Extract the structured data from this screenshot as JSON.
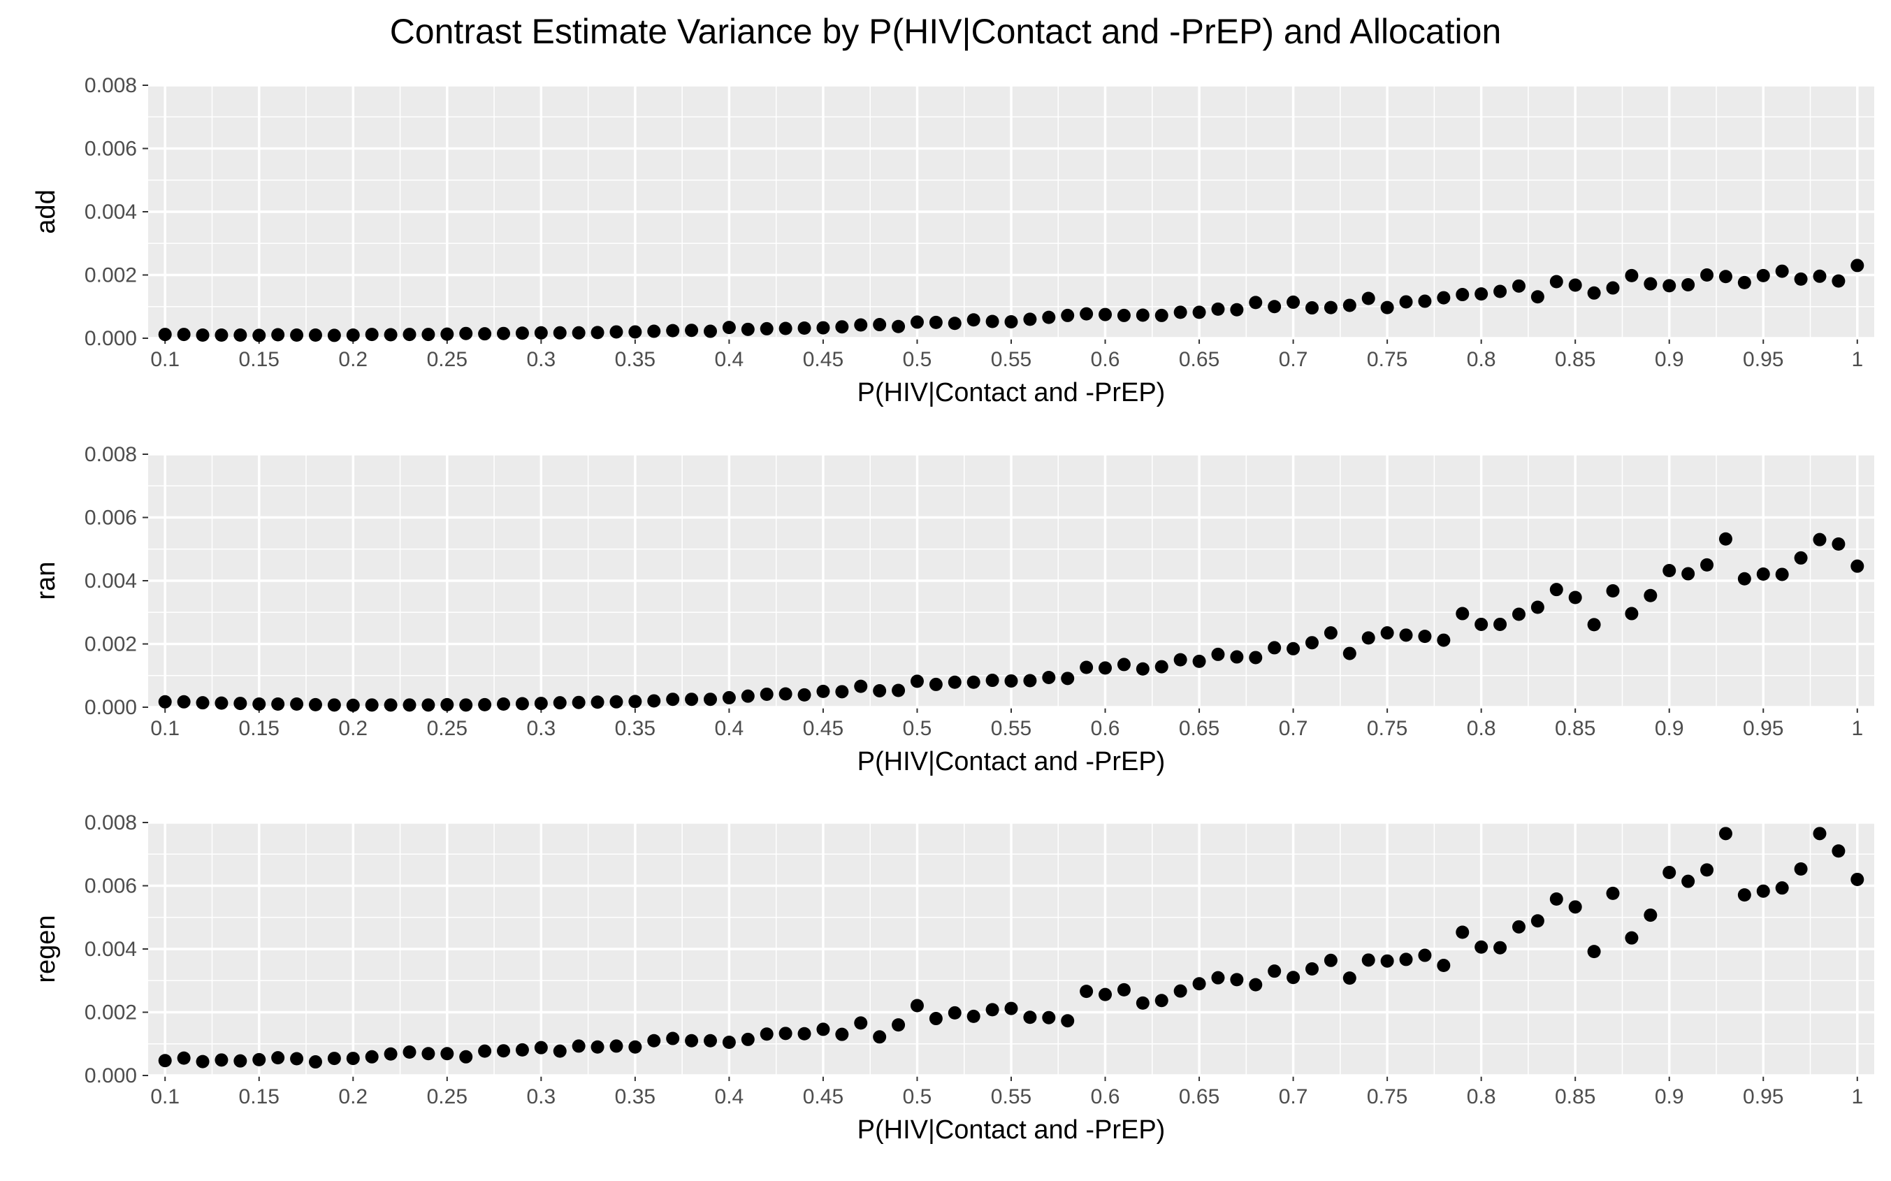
{
  "title": "Contrast Estimate Variance by P(HIV|Contact and -PrEP) and Allocation",
  "colors": {
    "panel_bg": "#ebebeb",
    "grid": "#ffffff",
    "point": "#000000",
    "tick_text": "#4d4d4d",
    "tick_mark": "#333333"
  },
  "chart_data": [
    {
      "type": "scatter",
      "xlabel": "P(HIV|Contact and -PrEP)",
      "ylabel": "add",
      "xlim": [
        0.1,
        1
      ],
      "ylim": [
        0,
        0.008
      ],
      "x_ticks": [
        "0.1",
        "0.15",
        "0.2",
        "0.25",
        "0.3",
        "0.35",
        "0.4",
        "0.45",
        "0.5",
        "0.55",
        "0.6",
        "0.65",
        "0.7",
        "0.75",
        "0.8",
        "0.85",
        "0.9",
        "0.95",
        "1"
      ],
      "y_ticks": [
        "0.000",
        "0.002",
        "0.004",
        "0.006",
        "0.008"
      ],
      "grid": true,
      "x": [
        0.1,
        0.11,
        0.12,
        0.13,
        0.14,
        0.15,
        0.16,
        0.17,
        0.18,
        0.19,
        0.2,
        0.21,
        0.22,
        0.23,
        0.24,
        0.25,
        0.26,
        0.27,
        0.28,
        0.29,
        0.3,
        0.31,
        0.32,
        0.33,
        0.34,
        0.35,
        0.36,
        0.37,
        0.38,
        0.39,
        0.4,
        0.41,
        0.42,
        0.43,
        0.44,
        0.45,
        0.46,
        0.47,
        0.48,
        0.49,
        0.5,
        0.51,
        0.52,
        0.53,
        0.54,
        0.55,
        0.56,
        0.57,
        0.58,
        0.59,
        0.6,
        0.61,
        0.62,
        0.63,
        0.64,
        0.65,
        0.66,
        0.67,
        0.68,
        0.69,
        0.7,
        0.71,
        0.72,
        0.73,
        0.74,
        0.75,
        0.76,
        0.77,
        0.78,
        0.79,
        0.8,
        0.81,
        0.82,
        0.83,
        0.84,
        0.85,
        0.86,
        0.87,
        0.88,
        0.89,
        0.9,
        0.91,
        0.92,
        0.93,
        0.94,
        0.95,
        0.96,
        0.97,
        0.98,
        0.99,
        1.0
      ],
      "y": [
        0.00012,
        0.00012,
        0.0001,
        0.0001,
        0.0001,
        9e-05,
        0.00011,
        0.0001,
        0.0001,
        9e-05,
        0.0001,
        0.00012,
        0.00011,
        0.00012,
        0.00012,
        0.00013,
        0.00015,
        0.00014,
        0.00015,
        0.00016,
        0.00017,
        0.00017,
        0.00017,
        0.00018,
        0.0002,
        0.0002,
        0.00022,
        0.00024,
        0.00025,
        0.00022,
        0.00034,
        0.00028,
        0.0003,
        0.00031,
        0.00032,
        0.00033,
        0.00036,
        0.00042,
        0.00043,
        0.00037,
        0.00051,
        0.0005,
        0.00047,
        0.00058,
        0.00053,
        0.00052,
        0.0006,
        0.00066,
        0.00072,
        0.00077,
        0.00075,
        0.00072,
        0.00073,
        0.00072,
        0.00082,
        0.00082,
        0.00092,
        0.0009,
        0.00113,
        0.001,
        0.00114,
        0.00096,
        0.00097,
        0.00104,
        0.00126,
        0.00097,
        0.00115,
        0.00117,
        0.00128,
        0.00138,
        0.0014,
        0.00148,
        0.00165,
        0.00131,
        0.00179,
        0.00168,
        0.00143,
        0.00159,
        0.00198,
        0.00172,
        0.00166,
        0.00169,
        0.002,
        0.00195,
        0.00176,
        0.00198,
        0.00212,
        0.00187,
        0.00196,
        0.00181,
        0.0023
      ]
    },
    {
      "type": "scatter",
      "xlabel": "P(HIV|Contact and -PrEP)",
      "ylabel": "ran",
      "xlim": [
        0.1,
        1
      ],
      "ylim": [
        0,
        0.008
      ],
      "x_ticks": [
        "0.1",
        "0.15",
        "0.2",
        "0.25",
        "0.3",
        "0.35",
        "0.4",
        "0.45",
        "0.5",
        "0.55",
        "0.6",
        "0.65",
        "0.7",
        "0.75",
        "0.8",
        "0.85",
        "0.9",
        "0.95",
        "1"
      ],
      "y_ticks": [
        "0.000",
        "0.002",
        "0.004",
        "0.006",
        "0.008"
      ],
      "grid": true,
      "x": [
        0.1,
        0.11,
        0.12,
        0.13,
        0.14,
        0.15,
        0.16,
        0.17,
        0.18,
        0.19,
        0.2,
        0.21,
        0.22,
        0.23,
        0.24,
        0.25,
        0.26,
        0.27,
        0.28,
        0.29,
        0.3,
        0.31,
        0.32,
        0.33,
        0.34,
        0.35,
        0.36,
        0.37,
        0.38,
        0.39,
        0.4,
        0.41,
        0.42,
        0.43,
        0.44,
        0.45,
        0.46,
        0.47,
        0.48,
        0.49,
        0.5,
        0.51,
        0.52,
        0.53,
        0.54,
        0.55,
        0.56,
        0.57,
        0.58,
        0.59,
        0.6,
        0.61,
        0.62,
        0.63,
        0.64,
        0.65,
        0.66,
        0.67,
        0.68,
        0.69,
        0.7,
        0.71,
        0.72,
        0.73,
        0.74,
        0.75,
        0.76,
        0.77,
        0.78,
        0.79,
        0.8,
        0.81,
        0.82,
        0.83,
        0.84,
        0.85,
        0.86,
        0.87,
        0.88,
        0.89,
        0.9,
        0.91,
        0.92,
        0.93,
        0.94,
        0.95,
        0.96,
        0.97,
        0.98,
        0.99,
        1.0
      ],
      "y": [
        0.00017,
        0.00017,
        0.00014,
        0.00013,
        0.00012,
        0.0001,
        0.0001,
        0.0001,
        8e-05,
        7e-05,
        6e-05,
        7e-05,
        7e-05,
        7e-05,
        7e-05,
        8e-05,
        7e-05,
        8e-05,
        0.0001,
        0.00011,
        0.00012,
        0.00014,
        0.00015,
        0.00016,
        0.00017,
        0.00018,
        0.0002,
        0.00025,
        0.00025,
        0.00025,
        0.0003,
        0.00035,
        0.00041,
        0.00042,
        0.00039,
        0.0005,
        0.00049,
        0.00066,
        0.00052,
        0.00053,
        0.00082,
        0.00072,
        0.00079,
        0.00079,
        0.00085,
        0.00083,
        0.00084,
        0.00094,
        0.00091,
        0.00126,
        0.00124,
        0.00135,
        0.00121,
        0.00128,
        0.0015,
        0.00145,
        0.00167,
        0.00159,
        0.00157,
        0.00188,
        0.00185,
        0.00204,
        0.00235,
        0.0017,
        0.00219,
        0.00235,
        0.00228,
        0.00224,
        0.00212,
        0.00296,
        0.00262,
        0.00262,
        0.00294,
        0.00316,
        0.00372,
        0.00347,
        0.00261,
        0.00368,
        0.00296,
        0.00353,
        0.00432,
        0.00422,
        0.0045,
        0.00532,
        0.00406,
        0.00421,
        0.0042,
        0.00472,
        0.0053,
        0.00516,
        0.00446
      ]
    },
    {
      "type": "scatter",
      "xlabel": "P(HIV|Contact and -PrEP)",
      "ylabel": "regen",
      "xlim": [
        0.1,
        1
      ],
      "ylim": [
        0,
        0.008
      ],
      "x_ticks": [
        "0.1",
        "0.15",
        "0.2",
        "0.25",
        "0.3",
        "0.35",
        "0.4",
        "0.45",
        "0.5",
        "0.55",
        "0.6",
        "0.65",
        "0.7",
        "0.75",
        "0.8",
        "0.85",
        "0.9",
        "0.95",
        "1"
      ],
      "y_ticks": [
        "0.000",
        "0.002",
        "0.004",
        "0.006",
        "0.008"
      ],
      "grid": true,
      "x": [
        0.1,
        0.11,
        0.12,
        0.13,
        0.14,
        0.15,
        0.16,
        0.17,
        0.18,
        0.19,
        0.2,
        0.21,
        0.22,
        0.23,
        0.24,
        0.25,
        0.26,
        0.27,
        0.28,
        0.29,
        0.3,
        0.31,
        0.32,
        0.33,
        0.34,
        0.35,
        0.36,
        0.37,
        0.38,
        0.39,
        0.4,
        0.41,
        0.42,
        0.43,
        0.44,
        0.45,
        0.46,
        0.47,
        0.48,
        0.49,
        0.5,
        0.51,
        0.52,
        0.53,
        0.54,
        0.55,
        0.56,
        0.57,
        0.58,
        0.59,
        0.6,
        0.61,
        0.62,
        0.63,
        0.64,
        0.65,
        0.66,
        0.67,
        0.68,
        0.69,
        0.7,
        0.71,
        0.72,
        0.73,
        0.74,
        0.75,
        0.76,
        0.77,
        0.78,
        0.79,
        0.8,
        0.81,
        0.82,
        0.83,
        0.84,
        0.85,
        0.86,
        0.87,
        0.88,
        0.89,
        0.9,
        0.91,
        0.92,
        0.93,
        0.94,
        0.95,
        0.96,
        0.97,
        0.98,
        0.99,
        1.0
      ],
      "y": [
        0.00047,
        0.00055,
        0.00044,
        0.00049,
        0.00046,
        0.0005,
        0.00056,
        0.00053,
        0.00043,
        0.00054,
        0.00054,
        0.00059,
        0.00068,
        0.00074,
        0.00069,
        0.00069,
        0.00059,
        0.00077,
        0.00078,
        0.00081,
        0.00088,
        0.00077,
        0.00093,
        0.0009,
        0.00093,
        0.0009,
        0.0011,
        0.00117,
        0.0011,
        0.0011,
        0.00105,
        0.00114,
        0.00131,
        0.00133,
        0.00132,
        0.00146,
        0.0013,
        0.00166,
        0.00122,
        0.0016,
        0.00221,
        0.0018,
        0.00198,
        0.00187,
        0.00208,
        0.00212,
        0.00184,
        0.00183,
        0.00173,
        0.00266,
        0.00256,
        0.00271,
        0.00229,
        0.00237,
        0.00267,
        0.0029,
        0.00309,
        0.00303,
        0.00287,
        0.0033,
        0.0031,
        0.00337,
        0.00364,
        0.00308,
        0.00365,
        0.00362,
        0.00367,
        0.0038,
        0.00348,
        0.00453,
        0.00406,
        0.00404,
        0.0047,
        0.00489,
        0.00558,
        0.00533,
        0.00392,
        0.00576,
        0.00435,
        0.00507,
        0.00642,
        0.00614,
        0.0065,
        0.00765,
        0.00571,
        0.00583,
        0.00593,
        0.00653,
        0.00765,
        0.0071,
        0.0062
      ]
    }
  ]
}
